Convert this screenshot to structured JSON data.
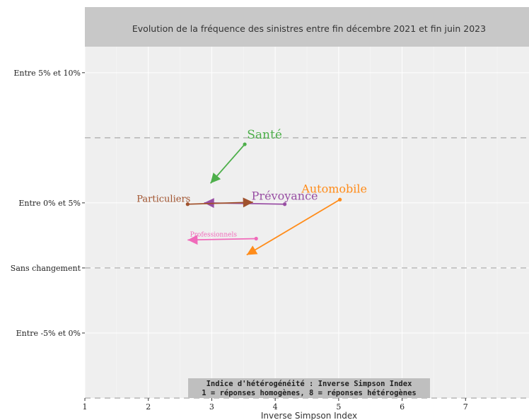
{
  "chart_data": {
    "type": "scatter",
    "title": "Evolution de la fréquence des sinistres entre fin décembre 2021 et fin juin 2023",
    "xlabel": "Inverse Simpson Index",
    "xlim": [
      1,
      8
    ],
    "x_ticks": [
      "1",
      "2",
      "3",
      "4",
      "5",
      "6",
      "7"
    ],
    "y_ticks": [
      "Entre -5% et 0%",
      "Sans changement",
      "Entre 0% et 5%",
      "Entre 5% et 10%"
    ],
    "y_tick_values": [
      -1,
      0,
      1,
      3
    ],
    "ylim": [
      -2,
      3.4
    ],
    "dashed_reference_lines_y": [
      0,
      2
    ],
    "grid": true,
    "note_lines": [
      "Indice d'hétérogénéité : Inverse Simpson Index",
      "1 = réponses homogènes, 8 = réponses hétérogènes"
    ],
    "series": [
      {
        "name": "Santé",
        "color": "#4daf4a",
        "from": [
          3.52,
          1.9
        ],
        "to": [
          2.98,
          1.3
        ],
        "label_size": 17
      },
      {
        "name": "Automobile",
        "color": "#ff8c1a",
        "from": [
          5.02,
          1.05
        ],
        "to": [
          3.55,
          0.2
        ],
        "label_size": 16
      },
      {
        "name": "Prévoyance",
        "color": "#984ea3",
        "from": [
          4.15,
          0.98
        ],
        "to": [
          2.88,
          1.0
        ],
        "label_size": 16
      },
      {
        "name": "Particuliers",
        "color": "#a0522d",
        "from": [
          2.62,
          0.98
        ],
        "to": [
          3.65,
          1.01
        ],
        "label_size": 13
      },
      {
        "name": "Professionnels",
        "color": "#f06aba",
        "from": [
          3.7,
          0.45
        ],
        "to": [
          2.62,
          0.43
        ],
        "label_size": 9
      }
    ]
  }
}
